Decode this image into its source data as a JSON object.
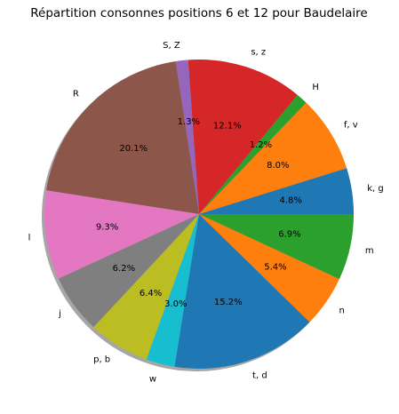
{
  "chart_data": {
    "type": "pie",
    "title": "Répartition consonnes positions 6 et 12 pour Baudelaire",
    "slices": [
      {
        "label": "k, g",
        "value": 4.8,
        "pct_label": "4.8%",
        "color": "#1f77b4"
      },
      {
        "label": "f, v",
        "value": 8.0,
        "pct_label": "8.0%",
        "color": "#ff7f0e"
      },
      {
        "label": "H",
        "value": 1.2,
        "pct_label": "1.2%",
        "color": "#2ca02c"
      },
      {
        "label": "s, z",
        "value": 12.1,
        "pct_label": "12.1%",
        "color": "#d62728"
      },
      {
        "label": "S, Z",
        "value": 1.3,
        "pct_label": "1.3%",
        "color": "#9467bd"
      },
      {
        "label": "R",
        "value": 20.1,
        "pct_label": "20.1%",
        "color": "#8c564b"
      },
      {
        "label": "l",
        "value": 9.3,
        "pct_label": "9.3%",
        "color": "#e377c2"
      },
      {
        "label": "j",
        "value": 6.2,
        "pct_label": "6.2%",
        "color": "#7f7f7f"
      },
      {
        "label": "p, b",
        "value": 6.4,
        "pct_label": "6.4%",
        "color": "#bcbd22"
      },
      {
        "label": "w",
        "value": 3.0,
        "pct_label": "3.0%",
        "color": "#17becf"
      },
      {
        "label": "t, d",
        "value": 15.2,
        "pct_label": "15.2%",
        "color": "#1f77b4"
      },
      {
        "label": "n",
        "value": 5.4,
        "pct_label": "5.4%",
        "color": "#ff7f0e"
      },
      {
        "label": "m",
        "value": 6.9,
        "pct_label": "6.9%",
        "color": "#2ca02c"
      }
    ],
    "start_angle": 0,
    "direction": "counterclockwise",
    "shadow": true
  }
}
